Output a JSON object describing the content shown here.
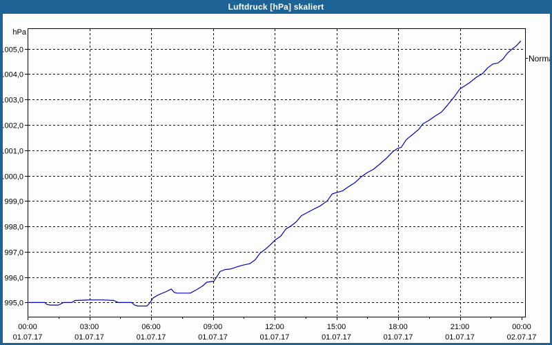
{
  "titlebar": {
    "title": "Luftdruck [hPa] skaliert"
  },
  "colors": {
    "titlebar_bg": "#1e6396",
    "titlebar_text": "#ffffff",
    "window_border": "#1e6396",
    "plot_background": "#fdfdfd",
    "grid": "#000000",
    "axis": "#000000",
    "line": "#0000b4",
    "label_text": "#000000"
  },
  "chart_data": {
    "type": "line",
    "title": "Luftdruck [hPa] skaliert",
    "unit_label": "hPa",
    "series_label": "Normal",
    "grid": "dashed",
    "legend_position": "right-edge",
    "y_axis": {
      "min": 995.0,
      "max": 1005.0,
      "tick_step": 1.0,
      "tick_values": [
        1005.0,
        1004.0,
        1003.0,
        1002.0,
        1001.0,
        1000.0,
        999.0,
        998.0,
        997.0,
        996.0,
        995.0
      ],
      "tick_labels": [
        "1005,0",
        "1004,0",
        "1003,0",
        "1002,0",
        "1001,0",
        "1000,0",
        "999,0",
        "998,0",
        "997,0",
        "996,0",
        "995,0"
      ]
    },
    "x_axis": {
      "range_hours": [
        0,
        24
      ],
      "major_tick_interval_hours": 3,
      "minor_tick_interval_hours": 1.5,
      "ticks": [
        {
          "hour": 0,
          "time": "00:00",
          "date": "01.07.17"
        },
        {
          "hour": 3,
          "time": "03:00",
          "date": "01.07.17"
        },
        {
          "hour": 6,
          "time": "06:00",
          "date": "01.07.17"
        },
        {
          "hour": 9,
          "time": "09:00",
          "date": "01.07.17"
        },
        {
          "hour": 12,
          "time": "12:00",
          "date": "01.07.17"
        },
        {
          "hour": 15,
          "time": "15:00",
          "date": "01.07.17"
        },
        {
          "hour": 18,
          "time": "18:00",
          "date": "01.07.17"
        },
        {
          "hour": 21,
          "time": "21:00",
          "date": "01.07.17"
        },
        {
          "hour": 24,
          "time": "00:00",
          "date": "02.07.17"
        }
      ]
    },
    "series": [
      {
        "name": "Normal",
        "color": "#0000b4",
        "points_hour_hpa": [
          [
            0.0,
            995.0
          ],
          [
            0.4,
            995.0
          ],
          [
            0.83,
            995.0
          ],
          [
            0.95,
            994.92
          ],
          [
            1.1,
            994.9
          ],
          [
            1.5,
            994.9
          ],
          [
            1.62,
            994.95
          ],
          [
            1.75,
            995.0
          ],
          [
            2.15,
            995.0
          ],
          [
            2.3,
            995.08
          ],
          [
            3.0,
            995.1
          ],
          [
            3.7,
            995.1
          ],
          [
            4.2,
            995.08
          ],
          [
            4.4,
            995.0
          ],
          [
            5.05,
            995.0
          ],
          [
            5.2,
            994.9
          ],
          [
            5.35,
            994.86
          ],
          [
            5.8,
            994.86
          ],
          [
            5.95,
            995.0
          ],
          [
            6.1,
            995.18
          ],
          [
            6.35,
            995.3
          ],
          [
            6.7,
            995.42
          ],
          [
            6.98,
            995.53
          ],
          [
            7.12,
            995.4
          ],
          [
            7.25,
            995.37
          ],
          [
            7.9,
            995.37
          ],
          [
            8.2,
            995.5
          ],
          [
            8.5,
            995.65
          ],
          [
            8.7,
            995.8
          ],
          [
            9.05,
            995.84
          ],
          [
            9.18,
            996.0
          ],
          [
            9.35,
            996.22
          ],
          [
            9.6,
            996.3
          ],
          [
            9.85,
            996.32
          ],
          [
            10.15,
            996.4
          ],
          [
            10.45,
            996.47
          ],
          [
            10.8,
            996.53
          ],
          [
            11.05,
            996.68
          ],
          [
            11.3,
            996.95
          ],
          [
            11.55,
            997.1
          ],
          [
            11.8,
            997.28
          ],
          [
            12.05,
            997.48
          ],
          [
            12.3,
            997.62
          ],
          [
            12.55,
            997.9
          ],
          [
            12.8,
            998.02
          ],
          [
            13.05,
            998.18
          ],
          [
            13.3,
            998.42
          ],
          [
            13.6,
            998.55
          ],
          [
            13.9,
            998.68
          ],
          [
            14.2,
            998.8
          ],
          [
            14.55,
            999.0
          ],
          [
            14.8,
            999.28
          ],
          [
            15.0,
            999.33
          ],
          [
            15.3,
            999.4
          ],
          [
            15.6,
            999.57
          ],
          [
            15.9,
            999.72
          ],
          [
            16.2,
            999.95
          ],
          [
            16.5,
            1000.12
          ],
          [
            16.8,
            1000.25
          ],
          [
            17.1,
            1000.45
          ],
          [
            17.45,
            1000.7
          ],
          [
            17.75,
            1000.95
          ],
          [
            17.95,
            1001.06
          ],
          [
            18.15,
            1001.12
          ],
          [
            18.4,
            1001.42
          ],
          [
            18.7,
            1001.62
          ],
          [
            19.0,
            1001.82
          ],
          [
            19.2,
            1002.04
          ],
          [
            19.5,
            1002.18
          ],
          [
            19.8,
            1002.35
          ],
          [
            20.1,
            1002.5
          ],
          [
            20.4,
            1002.78
          ],
          [
            20.7,
            1003.08
          ],
          [
            21.0,
            1003.42
          ],
          [
            21.2,
            1003.52
          ],
          [
            21.5,
            1003.68
          ],
          [
            21.8,
            1003.88
          ],
          [
            22.1,
            1004.02
          ],
          [
            22.35,
            1004.25
          ],
          [
            22.6,
            1004.4
          ],
          [
            22.85,
            1004.44
          ],
          [
            23.1,
            1004.6
          ],
          [
            23.3,
            1004.82
          ],
          [
            23.55,
            1005.0
          ],
          [
            23.75,
            1005.12
          ],
          [
            23.95,
            1005.3
          ]
        ]
      }
    ]
  }
}
